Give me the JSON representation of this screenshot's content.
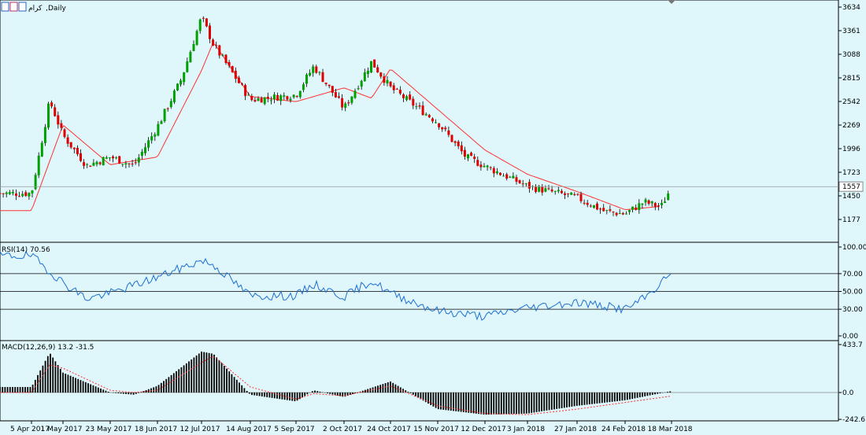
{
  "header": {
    "symbol": "كرام",
    "period": "Daily"
  },
  "colors": {
    "background": "#dff7fb",
    "bull": "#00a000",
    "bear": "#e00000",
    "ma": "#ff3030",
    "rsi": "#1e6fd0",
    "macd_hist": "#000000",
    "macd_signal": "#ff3030",
    "grid": "#000000"
  },
  "time_axis": [
    "5 Apr 2017",
    "1 May 2017",
    "23 May 2017",
    "18 Jun 2017",
    "12 Jul 2017",
    "14 Aug 2017",
    "5 Sep 2017",
    "2 Oct 2017",
    "24 Oct 2017",
    "15 Nov 2017",
    "12 Dec 2017",
    "3 Jan 2018",
    "27 Jan 2018",
    "24 Feb 2018",
    "18 Mar 2018"
  ],
  "price_axis": [
    "3634",
    "3361",
    "3088",
    "2815",
    "2542",
    "2269",
    "1996",
    "1723",
    "1450",
    "1177"
  ],
  "last_price": "1557",
  "rsi": {
    "label": "RSI(14) 70.56",
    "axis": [
      "100.00",
      "70.00",
      "50.00",
      "30.00",
      "0.00"
    ],
    "levels": [
      70,
      50,
      30
    ]
  },
  "macd": {
    "label": "MACD(12,26,9) 13.2 -31.5",
    "axis": [
      "433.7",
      "0.0",
      "-242.6"
    ]
  },
  "chart_data": [
    {
      "type": "candlestick",
      "title": "كرام,Daily",
      "ylim": [
        1000,
        3700
      ],
      "x_range": [
        "5 Apr 2017",
        "18 Mar 2018"
      ],
      "close_anchors": [
        [
          "5 Apr 2017",
          1480
        ],
        [
          "20 Apr 2017",
          2550
        ],
        [
          "1 May 2017",
          2150
        ],
        [
          "12 May 2017",
          1800
        ],
        [
          "23 May 2017",
          1900
        ],
        [
          "5 Jun 2017",
          1800
        ],
        [
          "18 Jun 2017",
          2250
        ],
        [
          "1 Jul 2017",
          2800
        ],
        [
          "12 Jul 2017",
          3520
        ],
        [
          "20 Jul 2017",
          3200
        ],
        [
          "14 Aug 2017",
          2560
        ],
        [
          "5 Sep 2017",
          2620
        ],
        [
          "15 Sep 2017",
          2950
        ],
        [
          "2 Oct 2017",
          2460
        ],
        [
          "15 Oct 2017",
          3000
        ],
        [
          "24 Oct 2017",
          2700
        ],
        [
          "15 Nov 2017",
          2300
        ],
        [
          "1 Dec 2017",
          1900
        ],
        [
          "3 Jan 2018",
          1560
        ],
        [
          "27 Jan 2018",
          1430
        ],
        [
          "12 Feb 2018",
          1270
        ],
        [
          "24 Feb 2018",
          1240
        ],
        [
          "5 Mar 2018",
          1380
        ],
        [
          "13 Mar 2018",
          1320
        ],
        [
          "18 Mar 2018",
          1557
        ]
      ],
      "moving_average_anchors": [
        [
          "5 Apr 2017",
          1280
        ],
        [
          "1 May 2017",
          2270
        ],
        [
          "23 May 2017",
          1810
        ],
        [
          "18 Jun 2017",
          1900
        ],
        [
          "12 Jul 2017",
          2900
        ],
        [
          "20 Jul 2017",
          3230
        ],
        [
          "14 Aug 2017",
          2600
        ],
        [
          "5 Sep 2017",
          2540
        ],
        [
          "2 Oct 2017",
          2700
        ],
        [
          "15 Oct 2017",
          2580
        ],
        [
          "24 Oct 2017",
          2920
        ],
        [
          "15 Nov 2017",
          2450
        ],
        [
          "12 Dec 2017",
          1980
        ],
        [
          "3 Jan 2018",
          1700
        ],
        [
          "27 Jan 2018",
          1500
        ],
        [
          "24 Feb 2018",
          1290
        ],
        [
          "18 Mar 2018",
          1340
        ]
      ],
      "last_price": 1557
    },
    {
      "type": "line",
      "title": "RSI(14) 70.56",
      "ylim": [
        0,
        100
      ],
      "levels": [
        70,
        50,
        30
      ],
      "series": [
        {
          "values_anchors": [
            [
              "5 Apr 2017",
              90
            ],
            [
              "1 May 2017",
              60
            ],
            [
              "12 May 2017",
              42
            ],
            [
              "23 May 2017",
              48
            ],
            [
              "18 Jun 2017",
              66
            ],
            [
              "12 Jul 2017",
              85
            ],
            [
              "20 Jul 2017",
              80
            ],
            [
              "14 Aug 2017",
              45
            ],
            [
              "5 Sep 2017",
              45
            ],
            [
              "15 Sep 2017",
              58
            ],
            [
              "2 Oct 2017",
              44
            ],
            [
              "15 Oct 2017",
              62
            ],
            [
              "24 Oct 2017",
              48
            ],
            [
              "15 Nov 2017",
              28
            ],
            [
              "12 Dec 2017",
              22
            ],
            [
              "3 Jan 2018",
              32
            ],
            [
              "27 Jan 2018",
              38
            ],
            [
              "24 Feb 2018",
              30
            ],
            [
              "5 Mar 2018",
              42
            ],
            [
              "18 Mar 2018",
              70.56
            ]
          ]
        }
      ]
    },
    {
      "type": "bar",
      "title": "MACD(12,26,9) 13.2 -31.5",
      "ylim": [
        -280,
        460
      ],
      "series": [
        {
          "name": "histogram",
          "values_anchors": [
            [
              "5 Apr 2017",
              50
            ],
            [
              "20 Apr 2017",
              360
            ],
            [
              "1 May 2017",
              180
            ],
            [
              "23 May 2017",
              0
            ],
            [
              "5 Jun 2017",
              -20
            ],
            [
              "18 Jun 2017",
              60
            ],
            [
              "12 Jul 2017",
              370
            ],
            [
              "20 Jul 2017",
              350
            ],
            [
              "14 Aug 2017",
              -20
            ],
            [
              "5 Sep 2017",
              -80
            ],
            [
              "15 Sep 2017",
              20
            ],
            [
              "2 Oct 2017",
              -40
            ],
            [
              "24 Oct 2017",
              100
            ],
            [
              "15 Nov 2017",
              -150
            ],
            [
              "12 Dec 2017",
              -200
            ],
            [
              "3 Jan 2018",
              -190
            ],
            [
              "27 Jan 2018",
              -120
            ],
            [
              "24 Feb 2018",
              -70
            ],
            [
              "18 Mar 2018",
              13.2
            ]
          ]
        },
        {
          "name": "signal",
          "values_anchors": [
            [
              "5 Apr 2017",
              0
            ],
            [
              "20 Apr 2017",
              250
            ],
            [
              "1 May 2017",
              220
            ],
            [
              "23 May 2017",
              20
            ],
            [
              "5 Jun 2017",
              0
            ],
            [
              "18 Jun 2017",
              20
            ],
            [
              "12 Jul 2017",
              270
            ],
            [
              "20 Jul 2017",
              330
            ],
            [
              "14 Aug 2017",
              50
            ],
            [
              "5 Sep 2017",
              -60
            ],
            [
              "15 Sep 2017",
              -10
            ],
            [
              "2 Oct 2017",
              -30
            ],
            [
              "24 Oct 2017",
              60
            ],
            [
              "15 Nov 2017",
              -120
            ],
            [
              "12 Dec 2017",
              -190
            ],
            [
              "3 Jan 2018",
              -200
            ],
            [
              "27 Jan 2018",
              -150
            ],
            [
              "24 Feb 2018",
              -90
            ],
            [
              "18 Mar 2018",
              -31.5
            ]
          ]
        }
      ]
    }
  ]
}
